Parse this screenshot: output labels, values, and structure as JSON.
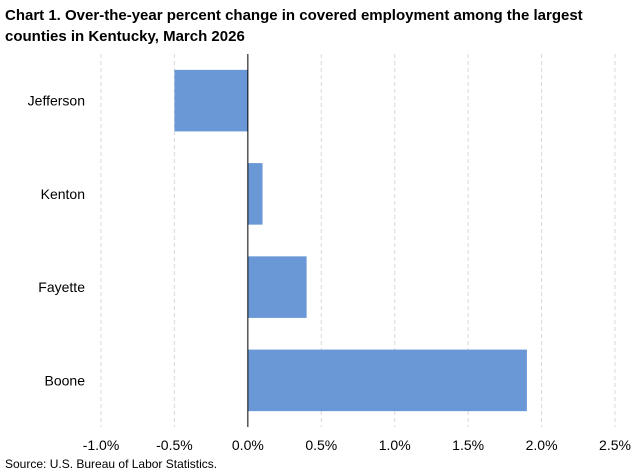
{
  "chart_data": {
    "type": "bar",
    "orientation": "horizontal",
    "title": "Chart 1. Over-the-year percent change in covered employment among the largest counties in Kentucky, March 2026",
    "source": "Source: U.S. Bureau of Labor Statistics.",
    "categories": [
      "Jefferson",
      "Kenton",
      "Fayette",
      "Boone"
    ],
    "values": [
      -0.5,
      0.1,
      0.4,
      1.9
    ],
    "xlim": [
      -1.0,
      2.5
    ],
    "x_ticks": [
      -1.0,
      -0.5,
      0.0,
      0.5,
      1.0,
      1.5,
      2.0,
      2.5
    ],
    "x_tick_labels": [
      "-1.0%",
      "-0.5%",
      "0.0%",
      "0.5%",
      "1.0%",
      "1.5%",
      "2.0%",
      "2.5%"
    ],
    "grid": "vertical-dashed",
    "legend": "none",
    "bar_color": "#6a97d6",
    "grid_color": "#d9d9d9"
  }
}
